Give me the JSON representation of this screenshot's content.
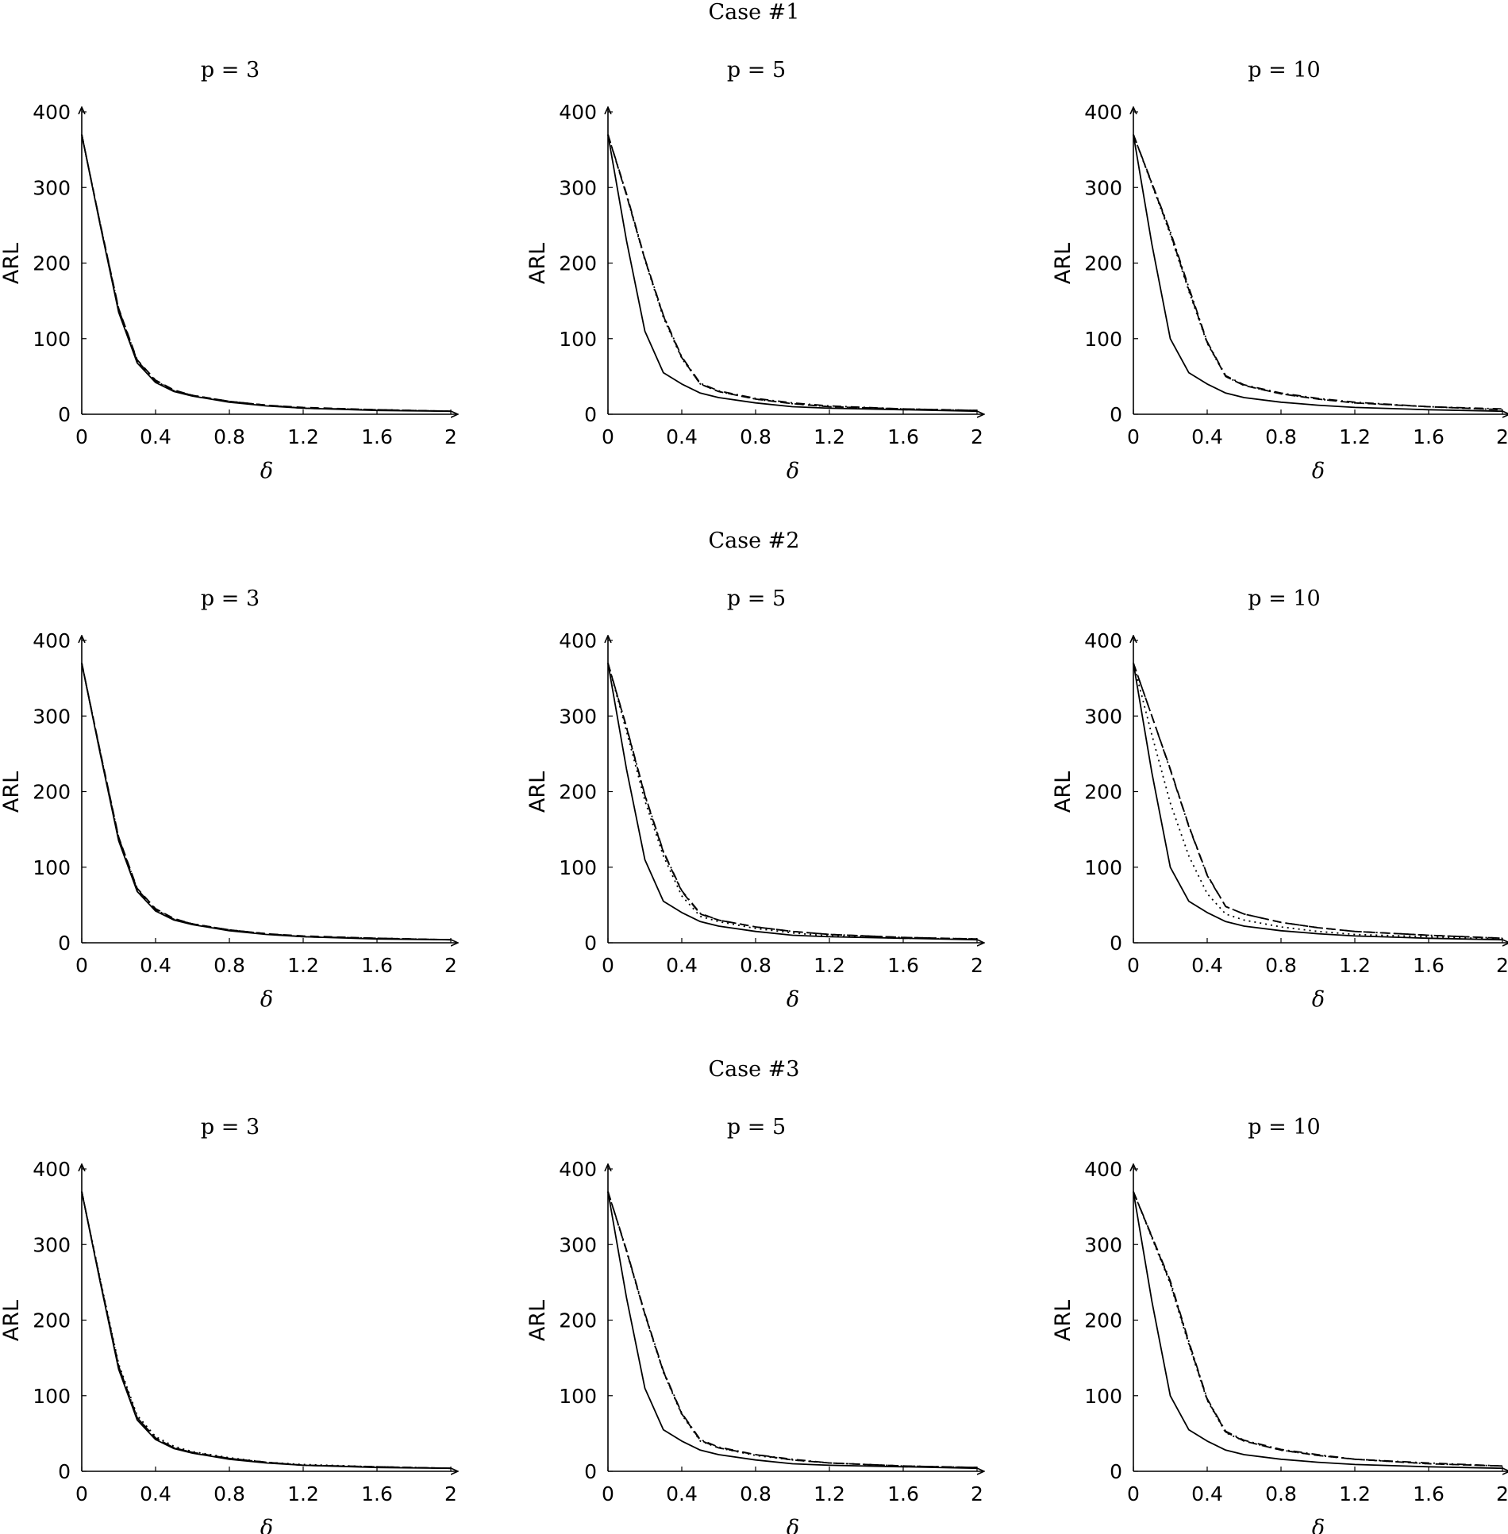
{
  "chart_data": {
    "type": "line",
    "x_label": "δ",
    "y_label": "ARL",
    "xlim": [
      0,
      2
    ],
    "ylim": [
      0,
      400
    ],
    "x_ticks": [
      0,
      0.4,
      0.8,
      1.2,
      1.6,
      2
    ],
    "x_tick_labels": [
      "0",
      "0.4",
      "0.8",
      "1.2",
      "1.6",
      "2"
    ],
    "y_ticks": [
      0,
      100,
      200,
      300,
      400
    ],
    "y_tick_labels": [
      "0",
      "100",
      "200",
      "300",
      "400"
    ],
    "x": [
      0,
      0.1,
      0.2,
      0.3,
      0.4,
      0.5,
      0.6,
      0.8,
      1.0,
      1.2,
      1.6,
      2.0
    ],
    "series_styles": [
      "solid",
      "dashed",
      "dotted",
      "dashdot"
    ],
    "cases": [
      {
        "title": "Case #1",
        "panels": [
          {
            "title": "p = 3",
            "series": [
              {
                "style": "solid",
                "values": [
                  370,
                  250,
                  135,
                  68,
                  42,
                  30,
                  24,
                  16,
                  11,
                  8,
                  5,
                  4
                ]
              },
              {
                "style": "dashed",
                "values": [
                  370,
                  252,
                  140,
                  72,
                  45,
                  32,
                  25,
                  17,
                  12,
                  9,
                  6,
                  4
                ]
              },
              {
                "style": "dotted",
                "values": [
                  370,
                  251,
                  138,
                  70,
                  44,
                  31,
                  25,
                  17,
                  12,
                  8,
                  6,
                  4
                ]
              },
              {
                "style": "dashdot",
                "values": [
                  370,
                  252,
                  139,
                  71,
                  44,
                  31,
                  25,
                  17,
                  12,
                  8,
                  6,
                  4
                ]
              }
            ]
          },
          {
            "title": "p = 5",
            "series": [
              {
                "style": "solid",
                "values": [
                  370,
                  230,
                  110,
                  55,
                  40,
                  28,
                  22,
                  15,
                  10,
                  8,
                  6,
                  4
                ]
              },
              {
                "style": "dashed",
                "values": [
                  370,
                  290,
                  205,
                  130,
                  75,
                  40,
                  30,
                  20,
                  14,
                  10,
                  7,
                  5
                ]
              },
              {
                "style": "dotted",
                "values": [
                  370,
                  290,
                  204,
                  128,
                  74,
                  40,
                  30,
                  20,
                  14,
                  10,
                  7,
                  5
                ]
              },
              {
                "style": "dashdot",
                "values": [
                  370,
                  292,
                  206,
                  131,
                  76,
                  41,
                  31,
                  21,
                  15,
                  11,
                  7,
                  5
                ]
              }
            ]
          },
          {
            "title": "p = 10",
            "series": [
              {
                "style": "solid",
                "values": [
                  370,
                  225,
                  100,
                  55,
                  40,
                  28,
                  22,
                  16,
                  12,
                  9,
                  6,
                  4
                ]
              },
              {
                "style": "dashed",
                "values": [
                  370,
                  305,
                  240,
                  165,
                  95,
                  50,
                  38,
                  27,
                  20,
                  15,
                  10,
                  6
                ]
              },
              {
                "style": "dotted",
                "values": [
                  370,
                  304,
                  238,
                  163,
                  94,
                  50,
                  38,
                  27,
                  20,
                  15,
                  10,
                  6
                ]
              },
              {
                "style": "dashdot",
                "values": [
                  370,
                  306,
                  242,
                  168,
                  96,
                  51,
                  39,
                  28,
                  21,
                  16,
                  10,
                  7
                ]
              }
            ]
          }
        ]
      },
      {
        "title": "Case #2",
        "panels": [
          {
            "title": "p = 3",
            "series": [
              {
                "style": "solid",
                "values": [
                  370,
                  250,
                  135,
                  68,
                  42,
                  30,
                  24,
                  16,
                  11,
                  8,
                  5,
                  4
                ]
              },
              {
                "style": "dashed",
                "values": [
                  370,
                  253,
                  140,
                  72,
                  45,
                  32,
                  25,
                  17,
                  12,
                  9,
                  6,
                  4
                ]
              },
              {
                "style": "dotted",
                "values": [
                  370,
                  252,
                  138,
                  70,
                  44,
                  31,
                  25,
                  17,
                  12,
                  8,
                  6,
                  4
                ]
              },
              {
                "style": "dashdot",
                "values": [
                  370,
                  252,
                  139,
                  71,
                  44,
                  31,
                  25,
                  17,
                  12,
                  8,
                  6,
                  4
                ]
              }
            ]
          },
          {
            "title": "p = 5",
            "series": [
              {
                "style": "solid",
                "values": [
                  370,
                  230,
                  110,
                  55,
                  40,
                  28,
                  22,
                  15,
                  10,
                  8,
                  6,
                  4
                ]
              },
              {
                "style": "dashed",
                "values": [
                  370,
                  285,
                  195,
                  120,
                  68,
                  38,
                  30,
                  21,
                  15,
                  11,
                  7,
                  5
                ]
              },
              {
                "style": "dotted",
                "values": [
                  370,
                  280,
                  188,
                  115,
                  62,
                  35,
                  28,
                  19,
                  13,
                  9,
                  6,
                  5
                ]
              },
              {
                "style": "dashdot",
                "values": [
                  370,
                  286,
                  196,
                  121,
                  69,
                  39,
                  30,
                  21,
                  15,
                  11,
                  7,
                  5
                ]
              }
            ]
          },
          {
            "title": "p = 10",
            "series": [
              {
                "style": "solid",
                "values": [
                  370,
                  225,
                  100,
                  55,
                  40,
                  28,
                  22,
                  16,
                  12,
                  9,
                  6,
                  4
                ]
              },
              {
                "style": "dashed",
                "values": [
                  370,
                  300,
                  230,
                  155,
                  90,
                  48,
                  38,
                  27,
                  20,
                  15,
                  10,
                  6
                ]
              },
              {
                "style": "dotted",
                "values": [
                  370,
                  275,
                  185,
                  115,
                  65,
                  38,
                  30,
                  21,
                  15,
                  11,
                  8,
                  5
                ]
              },
              {
                "style": "dashdot",
                "values": [
                  370,
                  300,
                  229,
                  154,
                  89,
                  48,
                  38,
                  27,
                  20,
                  15,
                  10,
                  6
                ]
              }
            ]
          }
        ]
      },
      {
        "title": "Case #3",
        "panels": [
          {
            "title": "p = 3",
            "series": [
              {
                "style": "solid",
                "values": [
                  370,
                  250,
                  135,
                  68,
                  42,
                  30,
                  24,
                  16,
                  11,
                  8,
                  5,
                  4
                ]
              },
              {
                "style": "dashed",
                "values": [
                  370,
                  252,
                  139,
                  71,
                  44,
                  31,
                  25,
                  17,
                  12,
                  8,
                  6,
                  4
                ]
              },
              {
                "style": "dotted",
                "values": [
                  370,
                  254,
                  142,
                  74,
                  46,
                  33,
                  26,
                  18,
                  12,
                  9,
                  6,
                  4
                ]
              },
              {
                "style": "dashdot",
                "values": [
                  370,
                  252,
                  139,
                  71,
                  44,
                  31,
                  25,
                  17,
                  12,
                  8,
                  6,
                  4
                ]
              }
            ]
          },
          {
            "title": "p = 5",
            "series": [
              {
                "style": "solid",
                "values": [
                  370,
                  230,
                  110,
                  55,
                  40,
                  28,
                  22,
                  15,
                  10,
                  8,
                  6,
                  4
                ]
              },
              {
                "style": "dashed",
                "values": [
                  370,
                  292,
                  208,
                  132,
                  76,
                  41,
                  31,
                  22,
                  15,
                  11,
                  7,
                  5
                ]
              },
              {
                "style": "dotted",
                "values": [
                  370,
                  291,
                  207,
                  131,
                  75,
                  40,
                  31,
                  21,
                  15,
                  11,
                  7,
                  5
                ]
              },
              {
                "style": "dashdot",
                "values": [
                  370,
                  293,
                  209,
                  133,
                  77,
                  42,
                  32,
                  22,
                  16,
                  11,
                  7,
                  5
                ]
              }
            ]
          },
          {
            "title": "p = 10",
            "series": [
              {
                "style": "solid",
                "values": [
                  370,
                  225,
                  100,
                  55,
                  40,
                  28,
                  22,
                  16,
                  12,
                  9,
                  6,
                  4
                ]
              },
              {
                "style": "dashed",
                "values": [
                  370,
                  310,
                  250,
                  170,
                  95,
                  52,
                  40,
                  28,
                  21,
                  16,
                  10,
                  7
                ]
              },
              {
                "style": "dotted",
                "values": [
                  370,
                  309,
                  248,
                  168,
                  94,
                  51,
                  40,
                  28,
                  21,
                  16,
                  10,
                  7
                ]
              },
              {
                "style": "dashdot",
                "values": [
                  370,
                  311,
                  252,
                  172,
                  96,
                  53,
                  41,
                  29,
                  22,
                  16,
                  11,
                  7
                ]
              }
            ]
          }
        ]
      }
    ]
  }
}
